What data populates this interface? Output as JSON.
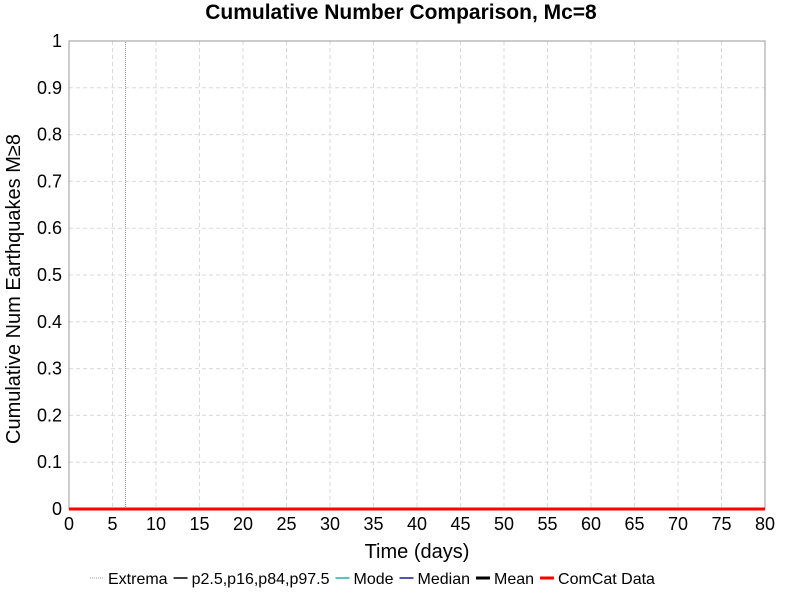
{
  "chart_data": {
    "type": "line",
    "title": "Cumulative Number Comparison, Mc=8",
    "xlabel": "Time (days)",
    "ylabel": "Cumulative Num Earthquakes M≥8",
    "xlim": [
      0,
      80
    ],
    "ylim": [
      0,
      1
    ],
    "x_ticks": [
      "0",
      "5",
      "10",
      "15",
      "20",
      "25",
      "30",
      "35",
      "40",
      "45",
      "50",
      "55",
      "60",
      "65",
      "70",
      "75",
      "80"
    ],
    "y_ticks": [
      "0",
      "0.1",
      "0.2",
      "0.3",
      "0.4",
      "0.5",
      "0.6",
      "0.7",
      "0.8",
      "0.9",
      "1"
    ],
    "grid": true,
    "legend_position": "bottom",
    "legend": [
      {
        "name": "Extrema",
        "color": "#9a9a9a",
        "style": "dotted"
      },
      {
        "name": "p2.5,p16,p84,p97.5",
        "color": "#000000",
        "style": "solid"
      },
      {
        "name": "Mode",
        "color": "#20b2aa",
        "style": "solid"
      },
      {
        "name": "Median",
        "color": "#1a1a9a",
        "style": "solid"
      },
      {
        "name": "Mean",
        "color": "#000000",
        "style": "solid-thick"
      },
      {
        "name": "ComCat Data",
        "color": "#ff0000",
        "style": "solid-thick"
      }
    ],
    "series": [
      {
        "name": "Extrema",
        "x": [
          6.5,
          6.5
        ],
        "y": [
          0,
          1
        ],
        "color": "#9a9a9a",
        "style": "dotted"
      },
      {
        "name": "p2.5,p16,p84,p97.5",
        "x": [
          0,
          80
        ],
        "y": [
          0,
          0
        ],
        "color": "#000000",
        "style": "solid"
      },
      {
        "name": "Mean",
        "x": [
          0,
          80
        ],
        "y": [
          0,
          0
        ],
        "color": "#000000",
        "style": "solid"
      },
      {
        "name": "ComCat Data",
        "x": [
          0,
          80
        ],
        "y": [
          0,
          0
        ],
        "color": "#ff0000",
        "style": "solid-thick"
      }
    ]
  }
}
